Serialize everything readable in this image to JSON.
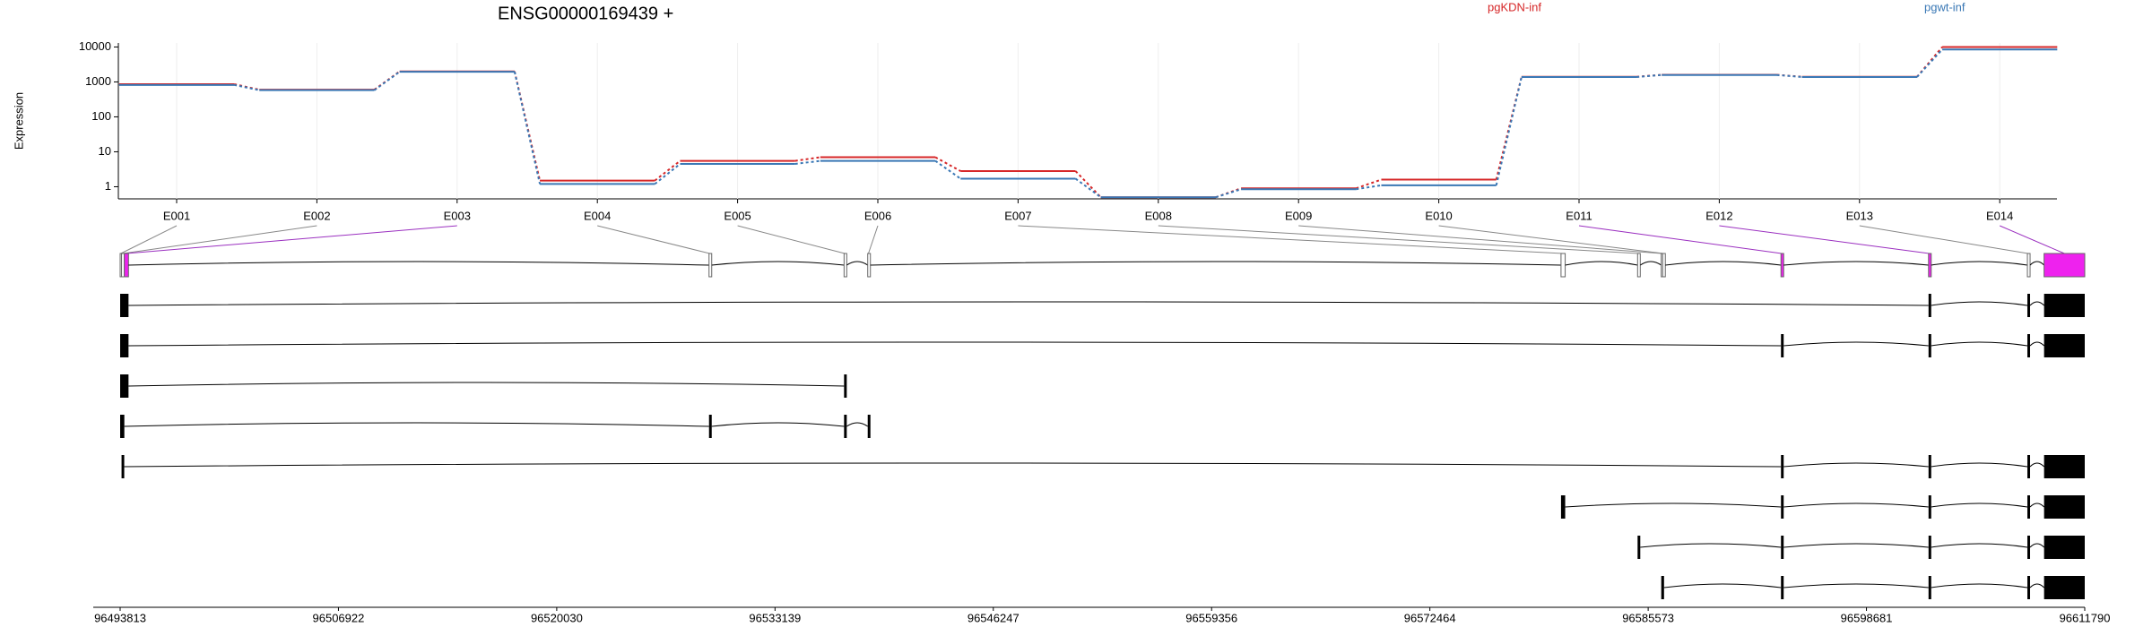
{
  "chart_data": {
    "type": "line",
    "title": "ENSG00000169439 +",
    "ylabel": "Expression",
    "categories": [
      "E001",
      "E002",
      "E003",
      "E004",
      "E005",
      "E006",
      "E007",
      "E008",
      "E009",
      "E010",
      "E011",
      "E012",
      "E013",
      "E014"
    ],
    "series": [
      {
        "name": "pgKDN-inf",
        "color": "#d62728",
        "values": [
          860,
          600,
          2000,
          1.5,
          5.5,
          7,
          2.8,
          0.5,
          0.9,
          1.6,
          1400,
          1600,
          1400,
          10000
        ]
      },
      {
        "name": "pgwt-inf",
        "color": "#3a78b5",
        "values": [
          820,
          580,
          1950,
          1.2,
          4.5,
          5.5,
          1.7,
          0.5,
          0.85,
          1.1,
          1380,
          1580,
          1380,
          8500
        ]
      }
    ],
    "ylim": [
      0.45,
      13000
    ],
    "yticks": [
      1,
      10,
      100,
      1000,
      10000
    ],
    "log_scale": true,
    "grid": true,
    "highlight_color": "#ee22ee",
    "significant": [
      false,
      false,
      true,
      false,
      false,
      false,
      false,
      false,
      false,
      false,
      true,
      true,
      false,
      true
    ],
    "exons": [
      [
        96493813,
        96493897
      ],
      [
        96493897,
        96494064
      ],
      [
        96494064,
        96494315
      ],
      [
        96529176,
        96529260
      ],
      [
        96537285,
        96537369
      ],
      [
        96538706,
        96538790
      ],
      [
        96580339,
        96580590
      ],
      [
        96584937,
        96585021
      ],
      [
        96586358,
        96586442
      ],
      [
        96586442,
        96586526
      ],
      [
        96593548,
        96593632
      ],
      [
        96602409,
        96602493
      ],
      [
        96608345,
        96608429
      ],
      [
        96609348,
        96611790
      ]
    ],
    "transcripts": [
      [
        [
          96493813,
          96494315
        ],
        [
          96602409,
          96602493
        ],
        [
          96608345,
          96608429
        ],
        [
          96609348,
          96611790
        ]
      ],
      [
        [
          96493813,
          96494315
        ],
        [
          96593548,
          96593632
        ],
        [
          96602409,
          96602493
        ],
        [
          96608345,
          96608429
        ],
        [
          96609348,
          96611790
        ]
      ],
      [
        [
          96493813,
          96494315
        ],
        [
          96537285,
          96537369
        ]
      ],
      [
        [
          96493813,
          96494064
        ],
        [
          96529176,
          96529260
        ],
        [
          96537285,
          96537369
        ],
        [
          96538706,
          96538790
        ]
      ],
      [
        [
          96493897,
          96493980
        ],
        [
          96593548,
          96593632
        ],
        [
          96602409,
          96602493
        ],
        [
          96608345,
          96608429
        ],
        [
          96609348,
          96611790
        ]
      ],
      [
        [
          96580339,
          96580590
        ],
        [
          96593548,
          96593632
        ],
        [
          96602409,
          96602493
        ],
        [
          96608345,
          96608429
        ],
        [
          96609348,
          96611790
        ]
      ],
      [
        [
          96584937,
          96585021
        ],
        [
          96593548,
          96593632
        ],
        [
          96602409,
          96602493
        ],
        [
          96608345,
          96608429
        ],
        [
          96609348,
          96611790
        ]
      ],
      [
        [
          96586358,
          96586526
        ],
        [
          96593548,
          96593632
        ],
        [
          96602409,
          96602493
        ],
        [
          96608345,
          96608429
        ],
        [
          96609348,
          96611790
        ]
      ]
    ],
    "xlim": [
      96493813,
      96611790
    ],
    "xticks": [
      96493813,
      96506922,
      96520030,
      96533139,
      96546247,
      96559356,
      96572464,
      96585573,
      96598681,
      96611790
    ]
  }
}
